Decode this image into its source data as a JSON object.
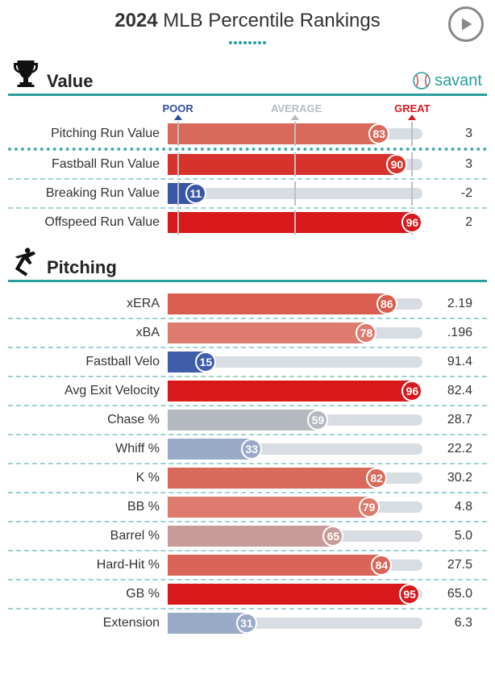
{
  "header": {
    "year": "2024",
    "title_rest": " MLB Percentile Rankings"
  },
  "brand": "savant",
  "legend": {
    "poor": {
      "text": "POOR",
      "color": "#2f4ea0",
      "pos_pct": 4
    },
    "average": {
      "text": "AVERAGE",
      "color": "#b8bcc2",
      "pos_pct": 50
    },
    "great": {
      "text": "GREAT",
      "color": "#d7191c",
      "pos_pct": 96
    }
  },
  "colors": {
    "track": "#d7dde3",
    "vline": "#bdbfc2",
    "teal": "#2a9d9d"
  },
  "bar_colors": {
    "83": "#d96a5b",
    "90": "#d7322b",
    "11": "#3a57a6",
    "96": "#d7191c",
    "86": "#d95e4f",
    "78": "#dc7b6e",
    "15": "#3f5dab",
    "59": "#b4b8bf",
    "33": "#9aabc8",
    "82": "#d96a5b",
    "79": "#dc7b6e",
    "65": "#c79b97",
    "84": "#d96457",
    "95": "#d7191c",
    "31": "#9aabc8"
  },
  "sections": [
    {
      "name": "Value",
      "icon": "trophy",
      "show_brand": true,
      "rows": [
        {
          "label": "Pitching Run Value",
          "pct": 83,
          "value": "3",
          "thick_sep_below": true
        },
        {
          "label": "Fastball Run Value",
          "pct": 90,
          "value": "3"
        },
        {
          "label": "Breaking Run Value",
          "pct": 11,
          "value": "-2"
        },
        {
          "label": "Offspeed Run Value",
          "pct": 96,
          "value": "2"
        }
      ]
    },
    {
      "name": "Pitching",
      "icon": "pitcher",
      "show_brand": false,
      "rows": [
        {
          "label": "xERA",
          "pct": 86,
          "value": "2.19"
        },
        {
          "label": "xBA",
          "pct": 78,
          "value": ".196"
        },
        {
          "label": "Fastball Velo",
          "pct": 15,
          "value": "91.4"
        },
        {
          "label": "Avg Exit Velocity",
          "pct": 96,
          "value": "82.4"
        },
        {
          "label": "Chase %",
          "pct": 59,
          "value": "28.7"
        },
        {
          "label": "Whiff %",
          "pct": 33,
          "value": "22.2"
        },
        {
          "label": "K %",
          "pct": 82,
          "value": "30.2"
        },
        {
          "label": "BB %",
          "pct": 79,
          "value": "4.8"
        },
        {
          "label": "Barrel %",
          "pct": 65,
          "value": "5.0"
        },
        {
          "label": "Hard-Hit %",
          "pct": 84,
          "value": "27.5"
        },
        {
          "label": "GB %",
          "pct": 95,
          "value": "65.0"
        },
        {
          "label": "Extension",
          "pct": 31,
          "value": "6.3"
        }
      ]
    }
  ]
}
